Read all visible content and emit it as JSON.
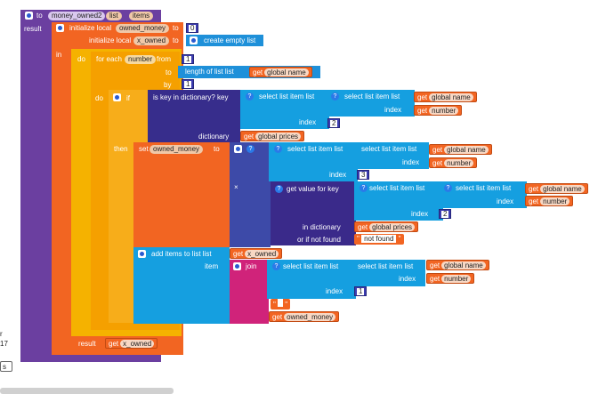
{
  "procedure": {
    "to": "to",
    "name": "money_owned2",
    "param1": "list",
    "param2": "items",
    "result": "result"
  },
  "init_local_1": {
    "label": "initialize local",
    "var": "owned_money",
    "to": "to",
    "value": "0"
  },
  "init_local_2": {
    "label": "initialize local",
    "var": "x_owned",
    "to": "to",
    "create": "create empty list"
  },
  "in_label": "in",
  "do_label": "do",
  "for_each": {
    "label": "for each",
    "var": "number",
    "from": "from",
    "from_val": "1",
    "to": "to",
    "by": "by",
    "by_val": "1",
    "length": "length of list  list",
    "get": "get",
    "get_var": "global name"
  },
  "if_block": {
    "do": "do",
    "if": "if",
    "then": "then",
    "is_key": "is key in dictionary? key",
    "dictionary": "dictionary",
    "get": "get",
    "dict_var": "global prices"
  },
  "select": {
    "label": "select list item  list",
    "index": "index",
    "get": "get",
    "g_name": "global name",
    "number": "number",
    "idx2": "2",
    "idx3": "3"
  },
  "set_block": {
    "set": "set",
    "var": "owned_money",
    "to": "to"
  },
  "times": "×",
  "get_value": {
    "label": "get value for key",
    "in_dict": "in dictionary",
    "not_found": "or if not found",
    "not_found_val": "not found",
    "dict_var": "global prices"
  },
  "add_items": {
    "label": "add items to list  list",
    "item": "item",
    "get": "get",
    "list_var": "x_owned"
  },
  "join": {
    "label": "join",
    "space": " ",
    "money_var": "owned_money"
  },
  "result_block": {
    "label": "result",
    "get": "get",
    "var": "x_owned"
  },
  "edge": {
    "line1": "r",
    "line2": "17",
    "btn": "s"
  },
  "colors": {
    "purple": "#6b3fa0",
    "orange": "#f26522",
    "amber": "#f5a000",
    "blue": "#1e90d9",
    "navy": "#372d8c",
    "pink": "#d0237a"
  }
}
